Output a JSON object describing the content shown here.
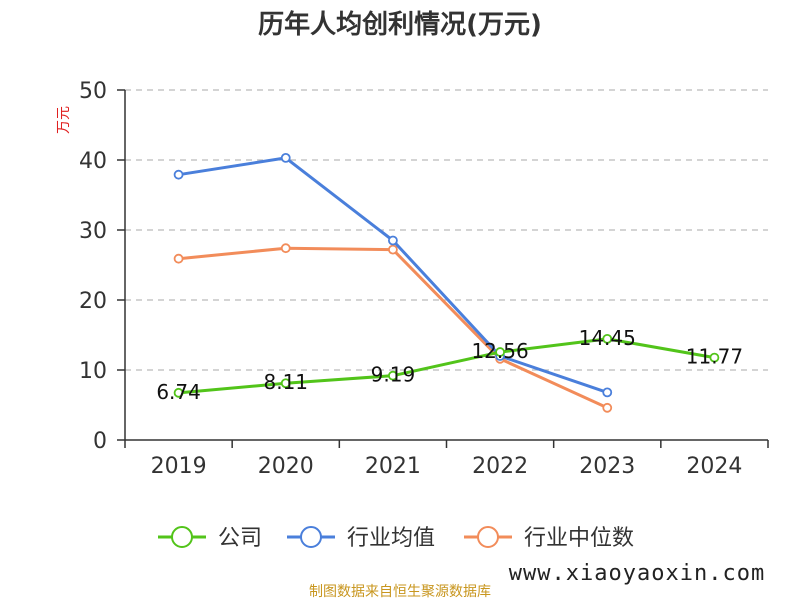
{
  "chart_data": {
    "type": "line",
    "title": "历年人均创利情况(万元)",
    "ylabel": "万元",
    "categories": [
      "2019",
      "2020",
      "2021",
      "2022",
      "2023",
      "2024"
    ],
    "ylim": [
      0,
      50
    ],
    "yticks": [
      0,
      10,
      20,
      30,
      40,
      50
    ],
    "grid": true,
    "legend_position": "bottom",
    "series": [
      {
        "name": "公司",
        "color": "#52c41a",
        "values": [
          6.74,
          8.11,
          9.19,
          12.56,
          14.45,
          11.77
        ],
        "show_labels": true
      },
      {
        "name": "行业均值",
        "color": "#4a7fdb",
        "values": [
          37.9,
          40.3,
          28.5,
          12.0,
          6.8,
          null
        ],
        "show_labels": false
      },
      {
        "name": "行业中位数",
        "color": "#f28c5a",
        "values": [
          25.9,
          27.4,
          27.2,
          11.6,
          4.6,
          null
        ],
        "show_labels": false
      }
    ],
    "data_labels": [
      "6.74",
      "8.11",
      "9.19",
      "12.56",
      "14.45",
      "11.77"
    ]
  },
  "colors": {
    "ylabel": "#e02020",
    "source": "#c8961e",
    "axis": "#333333",
    "grid": "#bbbbbb"
  },
  "source_text": "制图数据来自恒生聚源数据库",
  "watermark": "www.xiaoyaoxin.com"
}
